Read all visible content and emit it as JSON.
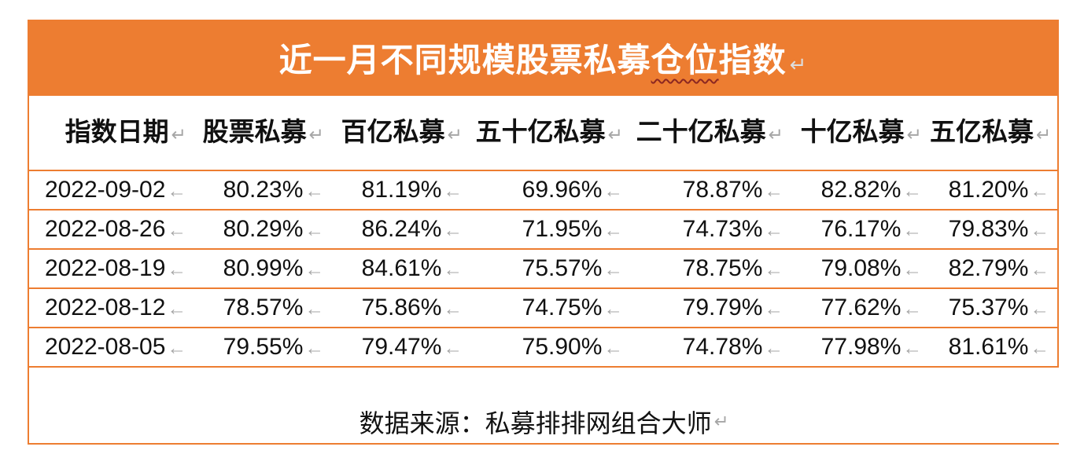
{
  "title": {
    "pre": "近一月不同规模股票私募",
    "underlined": "仓位",
    "post": "指数"
  },
  "marks": {
    "line_break": "↵",
    "cell_end": "←"
  },
  "footer": {
    "source": "数据来源：私募排排网组合大师"
  },
  "colors": {
    "accent_orange": "#ED7D31",
    "squiggle_red": "#8B2721",
    "mark_gray": "#A6A6A6",
    "title_text": "#FFFFFF",
    "body_text": "#111111"
  },
  "chart_data": {
    "type": "table",
    "title": "近一月不同规模股票私募仓位指数",
    "source": "数据来源：私募排排网组合大师",
    "columns": [
      "指数日期",
      "股票私募",
      "百亿私募",
      "五十亿私募",
      "二十亿私募",
      "十亿私募",
      "五亿私募"
    ],
    "rows": [
      [
        "2022-09-02",
        "80.23%",
        "81.19%",
        "69.96%",
        "78.87%",
        "82.82%",
        "81.20%"
      ],
      [
        "2022-08-26",
        "80.29%",
        "86.24%",
        "71.95%",
        "74.73%",
        "76.17%",
        "79.83%"
      ],
      [
        "2022-08-19",
        "80.99%",
        "84.61%",
        "75.57%",
        "78.75%",
        "79.08%",
        "82.79%"
      ],
      [
        "2022-08-12",
        "78.57%",
        "75.86%",
        "74.75%",
        "79.79%",
        "77.62%",
        "75.37%"
      ],
      [
        "2022-08-05",
        "79.55%",
        "79.47%",
        "75.90%",
        "74.78%",
        "77.98%",
        "81.61%"
      ]
    ]
  }
}
